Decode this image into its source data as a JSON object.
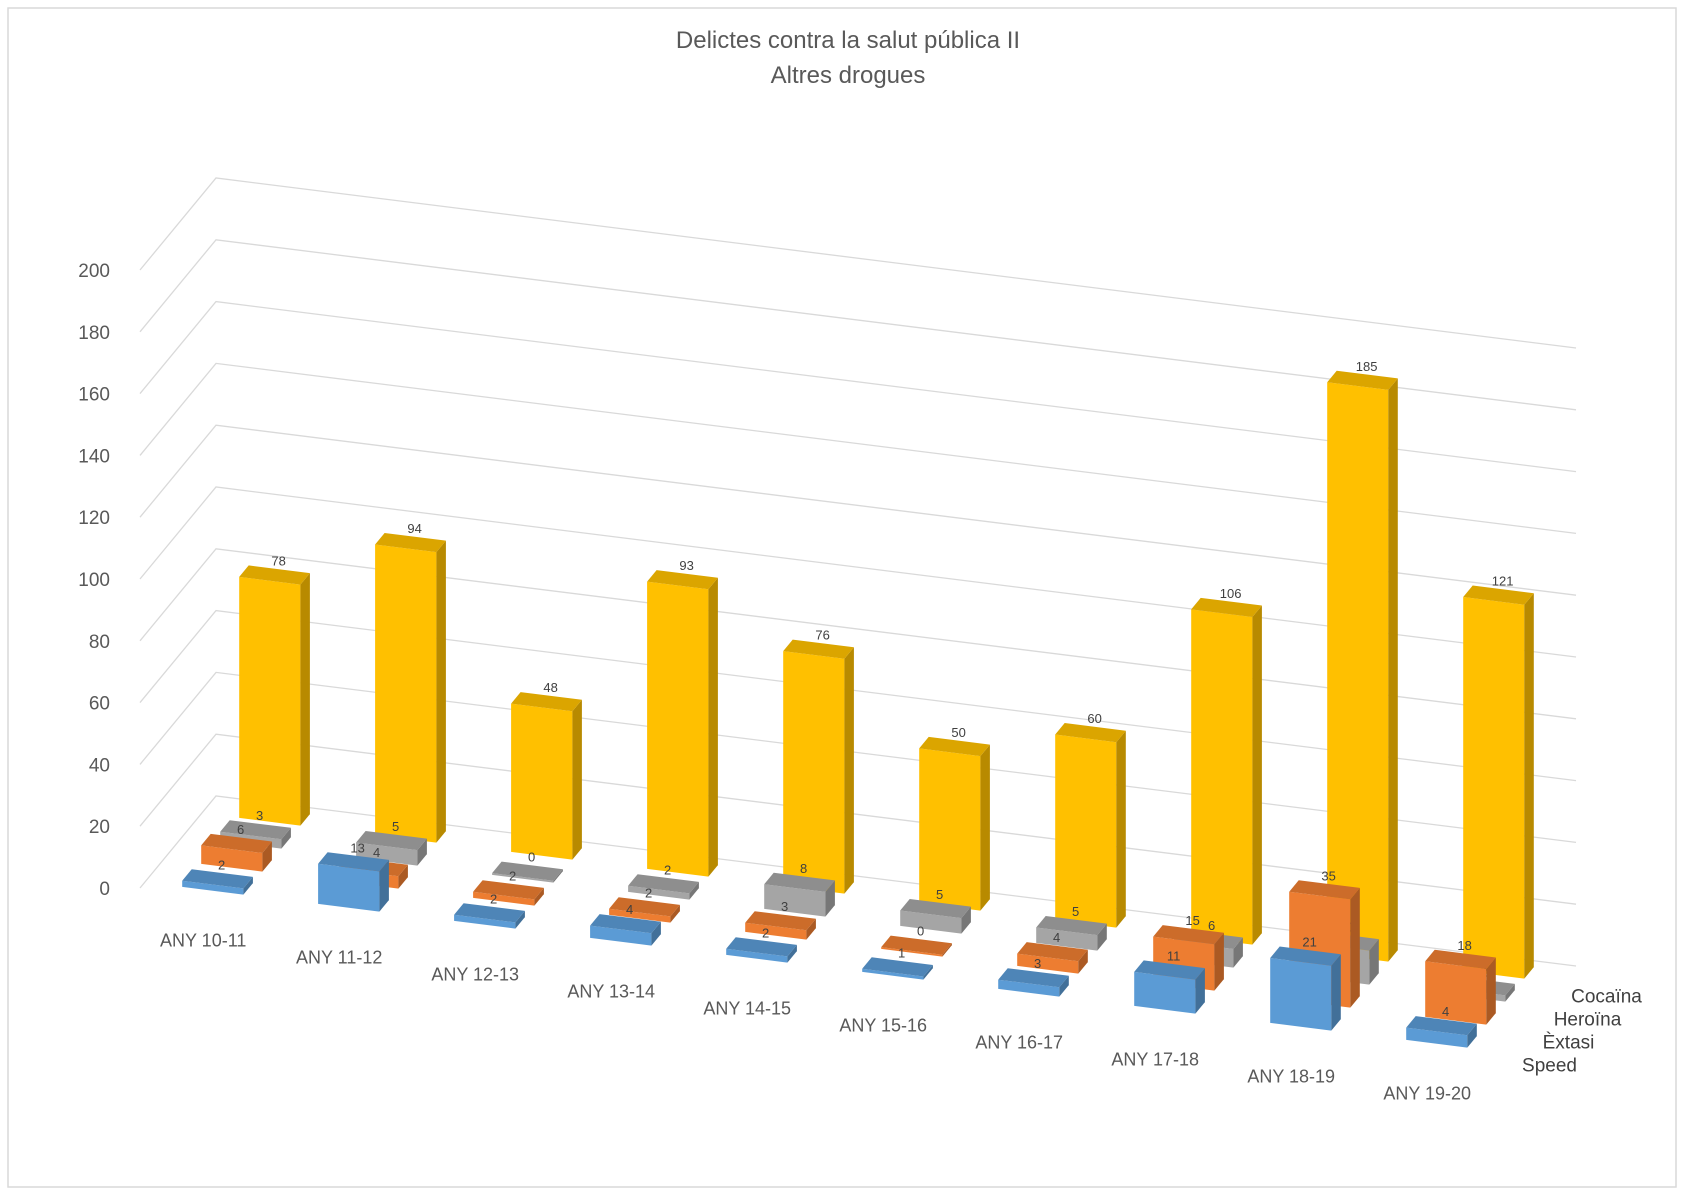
{
  "chart_data": {
    "type": "bar",
    "title": "Delictes contra la salut pública II",
    "subtitle": "Altres drogues",
    "categories": [
      "ANY 10-11",
      "ANY 11-12",
      "ANY 12-13",
      "ANY 13-14",
      "ANY 14-15",
      "ANY 15-16",
      "ANY 16-17",
      "ANY 17-18",
      "ANY 18-19",
      "ANY 19-20"
    ],
    "ylim": [
      0,
      200
    ],
    "yticks": [
      0,
      20,
      40,
      60,
      80,
      100,
      120,
      140,
      160,
      180,
      200
    ],
    "grid": true,
    "series": [
      {
        "name": "Speed",
        "color": "#5b9bd5",
        "values": [
          2,
          13,
          2,
          4,
          2,
          1,
          3,
          11,
          21,
          4
        ]
      },
      {
        "name": "Èxtasi",
        "color": "#ed7d31",
        "values": [
          6,
          4,
          2,
          2,
          3,
          0,
          4,
          15,
          35,
          18
        ]
      },
      {
        "name": "Heroïna",
        "color": "#a5a5a5",
        "values": [
          3,
          5,
          0,
          2,
          8,
          5,
          5,
          6,
          11,
          2
        ]
      },
      {
        "name": "Cocaïna",
        "color": "#ffc000",
        "values": [
          78,
          94,
          48,
          93,
          76,
          50,
          60,
          106,
          185,
          121
        ]
      }
    ]
  }
}
